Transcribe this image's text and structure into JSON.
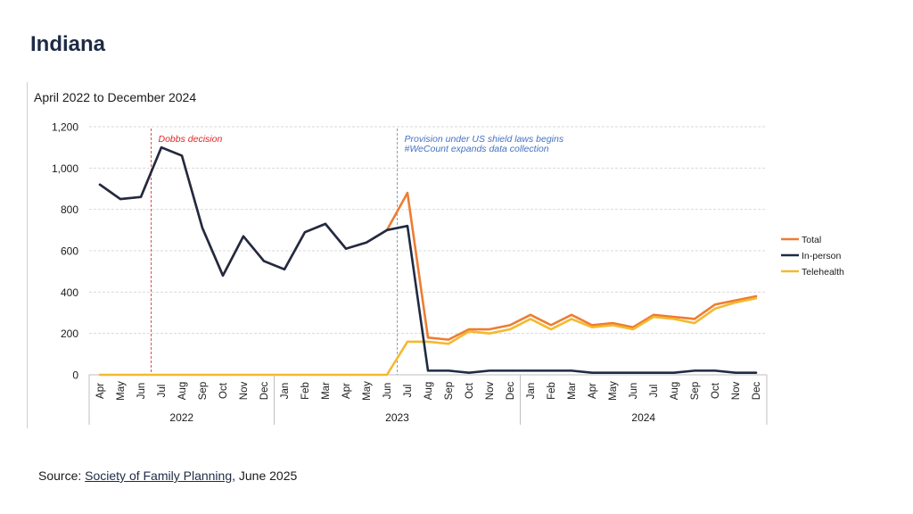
{
  "page": {
    "title": "Indiana",
    "source_prefix": "Source: ",
    "source_link": "Society of Family Planning",
    "source_suffix": ", June 2025"
  },
  "colors": {
    "total": "#ed7d31",
    "in_person": "#1f2a44",
    "telehealth": "#f4b92f",
    "dobbs_line": "#d9534f",
    "shield_line": "#8aa0b0",
    "dobbs_text": "#e02424",
    "shield_text": "#4472c4",
    "grid": "#d9d9d9",
    "axis_text": "#1a1a1a"
  },
  "chart_data": {
    "type": "line",
    "title": "April 2022 to December 2024",
    "xlabel": "",
    "ylabel": "",
    "ylim": [
      0,
      1200
    ],
    "yticks": [
      0,
      200,
      400,
      600,
      800,
      1000,
      1200
    ],
    "ytick_labels": [
      "0",
      "200",
      "400",
      "600",
      "800",
      "1,000",
      "1,200"
    ],
    "grid": true,
    "legend_position": "right",
    "categories": [
      "Apr",
      "May",
      "Jun",
      "Jul",
      "Aug",
      "Sep",
      "Oct",
      "Nov",
      "Dec",
      "Jan",
      "Feb",
      "Mar",
      "Apr",
      "May",
      "Jun",
      "Jul",
      "Aug",
      "Sep",
      "Oct",
      "Nov",
      "Dec",
      "Jan",
      "Feb",
      "Mar",
      "Apr",
      "May",
      "Jun",
      "Jul",
      "Aug",
      "Sep",
      "Oct",
      "Nov",
      "Dec"
    ],
    "year_groups": [
      {
        "label": "2022",
        "start": 0,
        "end": 8
      },
      {
        "label": "2023",
        "start": 9,
        "end": 20
      },
      {
        "label": "2024",
        "start": 21,
        "end": 32
      }
    ],
    "series": [
      {
        "name": "Total",
        "key": "total",
        "values": [
          920,
          850,
          860,
          1100,
          1060,
          710,
          480,
          670,
          550,
          510,
          690,
          730,
          610,
          640,
          700,
          880,
          180,
          170,
          220,
          220,
          240,
          290,
          240,
          290,
          240,
          250,
          230,
          290,
          280,
          270,
          340,
          360,
          380
        ]
      },
      {
        "name": "In-person",
        "key": "in_person",
        "values": [
          920,
          850,
          860,
          1100,
          1060,
          710,
          480,
          670,
          550,
          510,
          690,
          730,
          610,
          640,
          700,
          720,
          20,
          20,
          10,
          20,
          20,
          20,
          20,
          20,
          10,
          10,
          10,
          10,
          10,
          20,
          20,
          10,
          10
        ]
      },
      {
        "name": "Telehealth",
        "key": "telehealth",
        "values": [
          0,
          0,
          0,
          0,
          0,
          0,
          0,
          0,
          0,
          0,
          0,
          0,
          0,
          0,
          0,
          160,
          160,
          150,
          210,
          200,
          220,
          270,
          220,
          270,
          230,
          240,
          220,
          280,
          270,
          250,
          320,
          350,
          370
        ]
      }
    ],
    "annotations": [
      {
        "text": "Dobbs decision",
        "x_between": [
          2,
          3
        ],
        "color_key": "dobbs_text",
        "line_key": "dobbs_line"
      },
      {
        "text": "Provision under US shield laws begins",
        "text2": "#WeCount expands data collection",
        "x_between": [
          14,
          15
        ],
        "color_key": "shield_text",
        "line_key": "shield_line"
      }
    ]
  }
}
